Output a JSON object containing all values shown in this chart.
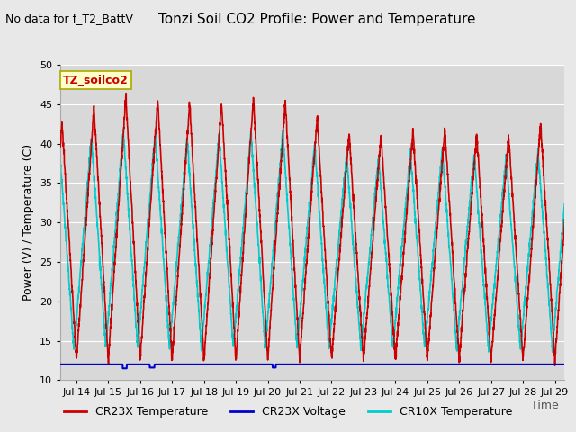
{
  "title": "Tonzi Soil CO2 Profile: Power and Temperature",
  "subtitle": "No data for f_T2_BattV",
  "ylabel": "Power (V) / Temperature (C)",
  "xlabel": "Time",
  "ylim": [
    10,
    50
  ],
  "yticks": [
    10,
    15,
    20,
    25,
    30,
    35,
    40,
    45,
    50
  ],
  "xlim_days": [
    13.5,
    29.3
  ],
  "x_tick_labels": [
    "Jul 14",
    "Jul 15",
    "Jul 16",
    "Jul 17",
    "Jul 18",
    "Jul 19",
    "Jul 20",
    "Jul 21",
    "Jul 22",
    "Jul 23",
    "Jul 24",
    "Jul 25",
    "Jul 26",
    "Jul 27",
    "Jul 28",
    "Jul 29"
  ],
  "x_tick_positions": [
    14,
    15,
    16,
    17,
    18,
    19,
    20,
    21,
    22,
    23,
    24,
    25,
    26,
    27,
    28,
    29
  ],
  "legend_box_label": "TZ_soilco2",
  "legend_box_color": "#ffffcc",
  "legend_box_border": "#aaa800",
  "series": {
    "CR23X_Temperature": {
      "color": "#cc0000",
      "label": "CR23X Temperature",
      "linewidth": 1.2
    },
    "CR23X_Voltage": {
      "color": "#0000cc",
      "label": "CR23X Voltage",
      "linewidth": 1.5
    },
    "CR10X_Temperature": {
      "color": "#00cccc",
      "label": "CR10X Temperature",
      "linewidth": 1.2
    }
  },
  "voltage_value": 12.0,
  "bg_color": "#e8e8e8",
  "plot_bg_color": "#d8d8d8",
  "grid_color": "#ffffff",
  "title_fontsize": 11,
  "subtitle_fontsize": 9,
  "axis_fontsize": 9,
  "tick_fontsize": 8,
  "legend_fontsize": 9
}
